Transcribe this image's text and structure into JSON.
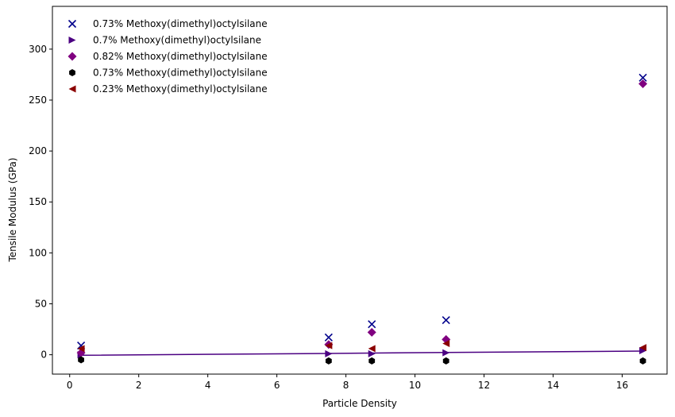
{
  "chart_data": {
    "type": "scatter",
    "xlabel": "Particle Density",
    "ylabel": "Tensile Modulus (GPa)",
    "xlim": [
      -0.5,
      17.3
    ],
    "ylim": [
      -19,
      342
    ],
    "xticks": [
      0,
      2,
      4,
      6,
      8,
      10,
      12,
      14,
      16
    ],
    "yticks": [
      0,
      50,
      100,
      150,
      200,
      250,
      300
    ],
    "x_tick_labels": [
      "0",
      "2",
      "4",
      "6",
      "8",
      "10",
      "12",
      "14",
      "16"
    ],
    "y_tick_labels": [
      "0",
      "50",
      "100",
      "150",
      "200",
      "250",
      "300"
    ],
    "grid": false,
    "legend_position": "top-left",
    "series": [
      {
        "name": "0.73% Methoxy(dimethyl)octylsilane",
        "marker": "x",
        "color": "#00008b",
        "x": [
          0.33,
          7.5,
          8.75,
          10.9,
          16.6
        ],
        "y": [
          9,
          17,
          30,
          34,
          272
        ]
      },
      {
        "name": "0.7% Methoxy(dimethyl)octylsilane",
        "marker": "triangle-right",
        "color": "#4b0082",
        "x": [
          0.33,
          7.5,
          8.75,
          10.9,
          16.6
        ],
        "y": [
          0,
          1,
          1,
          2,
          4
        ]
      },
      {
        "name": "0.82% Methoxy(dimethyl)octylsilane",
        "marker": "diamond",
        "color": "#800080",
        "x": [
          0.33,
          7.5,
          8.75,
          10.9,
          16.6
        ],
        "y": [
          2,
          10,
          22,
          15,
          266
        ]
      },
      {
        "name": "0.73% Methoxy(dimethyl)octylsilane",
        "marker": "hexagon",
        "color": "#000000",
        "x": [
          0.33,
          7.5,
          8.75,
          10.9,
          16.6
        ],
        "y": [
          -5,
          -6,
          -6,
          -6,
          -6
        ]
      },
      {
        "name": "0.23% Methoxy(dimethyl)octylsilane",
        "marker": "triangle-left",
        "color": "#8b0000",
        "x": [
          0.33,
          7.5,
          8.75,
          10.9,
          16.6
        ],
        "y": [
          6,
          9,
          6,
          11,
          7
        ]
      }
    ],
    "fit_line": {
      "color": "#4b0082",
      "x": [
        0.33,
        7.5,
        8.75,
        10.9,
        16.6
      ],
      "y": [
        -0.5,
        1.3,
        1.7,
        2.2,
        3.6
      ]
    }
  }
}
